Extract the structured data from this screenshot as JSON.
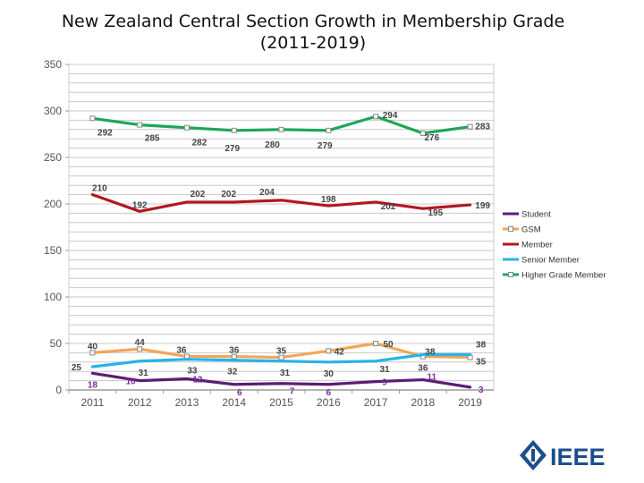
{
  "title_line1": "New Zealand Central Section Growth in Membership Grade",
  "title_line2": "(2011-2019)",
  "logo_text": "IEEE",
  "chart_data": {
    "type": "line",
    "categories": [
      "2011",
      "2012",
      "2013",
      "2014",
      "2015",
      "2016",
      "2017",
      "2018",
      "2019"
    ],
    "ylim": [
      0,
      350
    ],
    "yticks": [
      0,
      50,
      100,
      150,
      200,
      250,
      300,
      350
    ],
    "grid": true,
    "legend_position": "right",
    "series": [
      {
        "name": "Student",
        "color": "#5b1d74",
        "marker": false,
        "values": [
          18,
          10,
          12,
          6,
          7,
          6,
          9,
          11,
          3
        ]
      },
      {
        "name": "GSM",
        "color": "#f2a65a",
        "marker": true,
        "values": [
          40,
          44,
          36,
          36,
          35,
          42,
          50,
          36,
          35
        ]
      },
      {
        "name": "Member",
        "color": "#b0181c",
        "marker": false,
        "values": [
          210,
          192,
          202,
          202,
          204,
          198,
          202,
          195,
          199
        ]
      },
      {
        "name": "Senior Member",
        "color": "#29b3e6",
        "marker": false,
        "values": [
          25,
          31,
          33,
          32,
          31,
          30,
          31,
          38,
          38
        ]
      },
      {
        "name": "Higher Grade Member",
        "color": "#1ea65a",
        "marker": true,
        "values": [
          292,
          285,
          282,
          279,
          280,
          279,
          294,
          276,
          283
        ]
      }
    ]
  }
}
